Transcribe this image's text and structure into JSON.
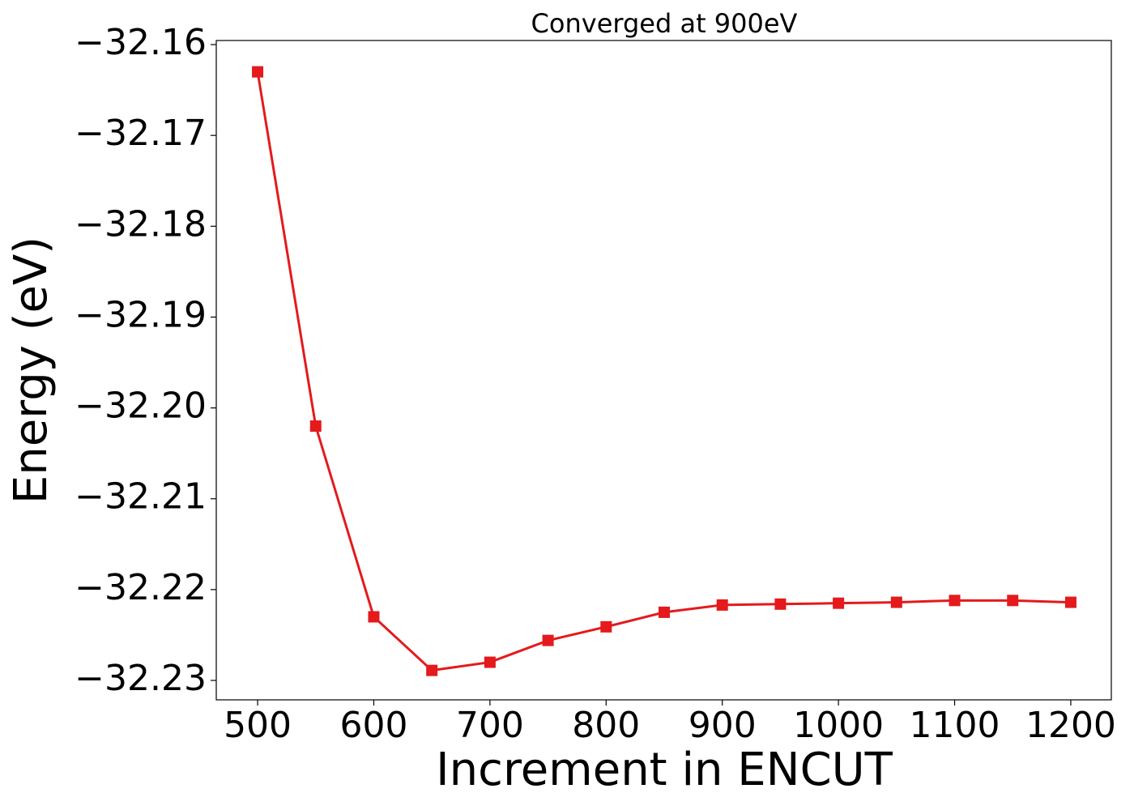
{
  "chart_data": {
    "type": "line",
    "title": "Converged at 900eV",
    "x_label": "Increment in ENCUT",
    "y_label": "Energy (eV)",
    "x": [
      500,
      550,
      600,
      650,
      700,
      750,
      800,
      850,
      900,
      950,
      1000,
      1050,
      1100,
      1150,
      1200
    ],
    "series": [
      {
        "name": "Energy",
        "color": "#e41a1c",
        "values": [
          -32.163,
          -32.202,
          -32.223,
          -32.2289,
          -32.228,
          -32.2256,
          -32.2241,
          -32.2225,
          -32.2217,
          -32.2216,
          -32.2215,
          -32.2214,
          -32.2212,
          -32.2212,
          -32.2214
        ]
      }
    ],
    "xlim": [
      464.4,
      1234.9
    ],
    "ylim": [
      -32.23214,
      -32.15955
    ],
    "xticks": [
      500,
      600,
      700,
      800,
      900,
      1000,
      1100,
      1200
    ],
    "yticks": [
      {
        "value": -32.23,
        "label": "−32.23"
      },
      {
        "value": -32.22,
        "label": "−32.22"
      },
      {
        "value": -32.21,
        "label": "−32.21"
      },
      {
        "value": -32.2,
        "label": "−32.20"
      },
      {
        "value": -32.19,
        "label": "−32.19"
      },
      {
        "value": -32.18,
        "label": "−32.18"
      },
      {
        "value": -32.17,
        "label": "−32.17"
      },
      {
        "value": -32.16,
        "label": "−32.16"
      }
    ],
    "grid": false
  }
}
